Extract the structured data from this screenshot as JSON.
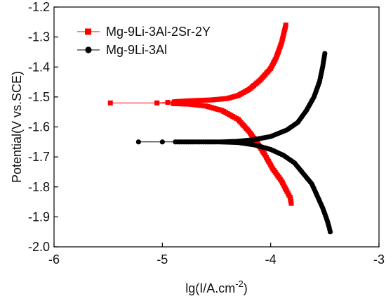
{
  "chart_data": {
    "type": "line",
    "xlabel": "lg(I/A.cm",
    "xlabel_sup": "-2",
    "xlabel_close": ")",
    "ylabel": "Potential(V vs.SCE)",
    "xlim": [
      -6,
      -3
    ],
    "ylim": [
      -2.0,
      -1.2
    ],
    "xticks": [
      -6,
      -5,
      -4,
      -3
    ],
    "yticks": [
      -1.2,
      -1.3,
      -1.4,
      -1.5,
      -1.6,
      -1.7,
      -1.8,
      -1.9,
      -2.0
    ],
    "xtick_labels": [
      "-6",
      "-5",
      "-4",
      "-3"
    ],
    "ytick_labels": [
      "-1.2",
      "-1.3",
      "-1.4",
      "-1.5",
      "-1.6",
      "-1.7",
      "-1.8",
      "-1.9",
      "-2.0"
    ],
    "legend_position": "top-left",
    "series": [
      {
        "name": "Mg-9Li-3Al-2Sr-2Y",
        "color": "#ff0000",
        "marker": "square",
        "anodic": [
          [
            -5.48,
            -1.52
          ],
          [
            -5.05,
            -1.52
          ],
          [
            -4.95,
            -1.518
          ],
          [
            -4.85,
            -1.515
          ],
          [
            -4.7,
            -1.512
          ],
          [
            -4.55,
            -1.51
          ],
          [
            -4.4,
            -1.505
          ],
          [
            -4.3,
            -1.495
          ],
          [
            -4.2,
            -1.475
          ],
          [
            -4.1,
            -1.445
          ],
          [
            -4.0,
            -1.405
          ],
          [
            -3.95,
            -1.37
          ],
          [
            -3.9,
            -1.32
          ],
          [
            -3.88,
            -1.29
          ],
          [
            -3.86,
            -1.26
          ]
        ],
        "cathodic": [
          [
            -5.05,
            -1.52
          ],
          [
            -4.9,
            -1.522
          ],
          [
            -4.75,
            -1.524
          ],
          [
            -4.6,
            -1.53
          ],
          [
            -4.45,
            -1.545
          ],
          [
            -4.3,
            -1.575
          ],
          [
            -4.2,
            -1.615
          ],
          [
            -4.12,
            -1.655
          ],
          [
            -4.05,
            -1.695
          ],
          [
            -3.98,
            -1.74
          ],
          [
            -3.9,
            -1.78
          ],
          [
            -3.85,
            -1.815
          ],
          [
            -3.82,
            -1.835
          ],
          [
            -3.81,
            -1.855
          ]
        ]
      },
      {
        "name": "Mg-9Li-3Al",
        "color": "#000000",
        "marker": "circle",
        "anodic": [
          [
            -5.22,
            -1.65
          ],
          [
            -5.0,
            -1.65
          ],
          [
            -4.8,
            -1.65
          ],
          [
            -4.6,
            -1.65
          ],
          [
            -4.45,
            -1.65
          ],
          [
            -4.3,
            -1.648
          ],
          [
            -4.15,
            -1.642
          ],
          [
            -4.0,
            -1.632
          ],
          [
            -3.85,
            -1.61
          ],
          [
            -3.75,
            -1.585
          ],
          [
            -3.67,
            -1.545
          ],
          [
            -3.6,
            -1.5
          ],
          [
            -3.55,
            -1.45
          ],
          [
            -3.52,
            -1.4
          ],
          [
            -3.5,
            -1.355
          ]
        ],
        "cathodic": [
          [
            -4.45,
            -1.65
          ],
          [
            -4.3,
            -1.652
          ],
          [
            -4.15,
            -1.66
          ],
          [
            -4.0,
            -1.675
          ],
          [
            -3.88,
            -1.695
          ],
          [
            -3.78,
            -1.72
          ],
          [
            -3.7,
            -1.755
          ],
          [
            -3.62,
            -1.79
          ],
          [
            -3.57,
            -1.83
          ],
          [
            -3.52,
            -1.87
          ],
          [
            -3.48,
            -1.91
          ],
          [
            -3.46,
            -1.935
          ],
          [
            -3.45,
            -1.95
          ]
        ]
      }
    ]
  }
}
